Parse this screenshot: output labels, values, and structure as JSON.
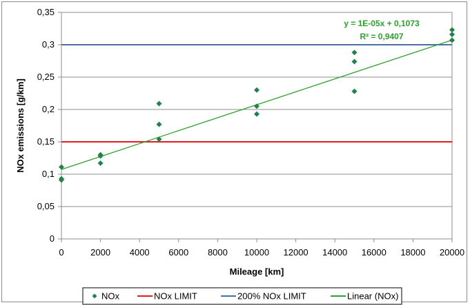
{
  "chart_data": {
    "type": "scatter",
    "xlabel": "Mileage [km]",
    "ylabel": "NOx emissions [g/km]",
    "xlim": [
      0,
      20000
    ],
    "ylim": [
      0,
      0.35
    ],
    "x_ticks": [
      0,
      2000,
      4000,
      6000,
      8000,
      10000,
      12000,
      14000,
      16000,
      18000,
      20000
    ],
    "x_tick_labels": [
      "0",
      "2000",
      "4000",
      "6000",
      "8000",
      "10000",
      "12000",
      "14000",
      "16000",
      "18000",
      "20000"
    ],
    "y_ticks": [
      0,
      0.05,
      0.1,
      0.15,
      0.2,
      0.25,
      0.3,
      0.35
    ],
    "y_tick_labels": [
      "0",
      "0,05",
      "0,1",
      "0,15",
      "0,2",
      "0,25",
      "0,3",
      "0,35"
    ],
    "grid": "horizontal",
    "legend_position": "bottom",
    "series": [
      {
        "name": "NOx",
        "kind": "scatter",
        "color": "#1e8449",
        "points": [
          [
            0,
            0.111
          ],
          [
            0,
            0.093
          ],
          [
            0,
            0.091
          ],
          [
            2000,
            0.13
          ],
          [
            2000,
            0.128
          ],
          [
            2000,
            0.117
          ],
          [
            5000,
            0.209
          ],
          [
            5000,
            0.177
          ],
          [
            5000,
            0.154
          ],
          [
            10000,
            0.23
          ],
          [
            10000,
            0.205
          ],
          [
            10000,
            0.193
          ],
          [
            15000,
            0.288
          ],
          [
            15000,
            0.274
          ],
          [
            15000,
            0.228
          ],
          [
            20000,
            0.323
          ],
          [
            20000,
            0.316
          ],
          [
            20000,
            0.307
          ]
        ]
      },
      {
        "name": "NOx LIMIT",
        "kind": "hline",
        "color": "#e31a1c",
        "y": 0.15
      },
      {
        "name": "200% NOx LIMIT",
        "kind": "hline",
        "color": "#4a6fa5",
        "y": 0.3
      },
      {
        "name": "Linear (NOx)",
        "kind": "trendline",
        "color": "#2ca02c",
        "slope": 1e-05,
        "intercept": 0.1073
      }
    ],
    "annotations": {
      "equation": "y = 1E-05x + 0,1073",
      "r_squared": "R² = 0,9407",
      "color": "#2ca02c"
    }
  }
}
